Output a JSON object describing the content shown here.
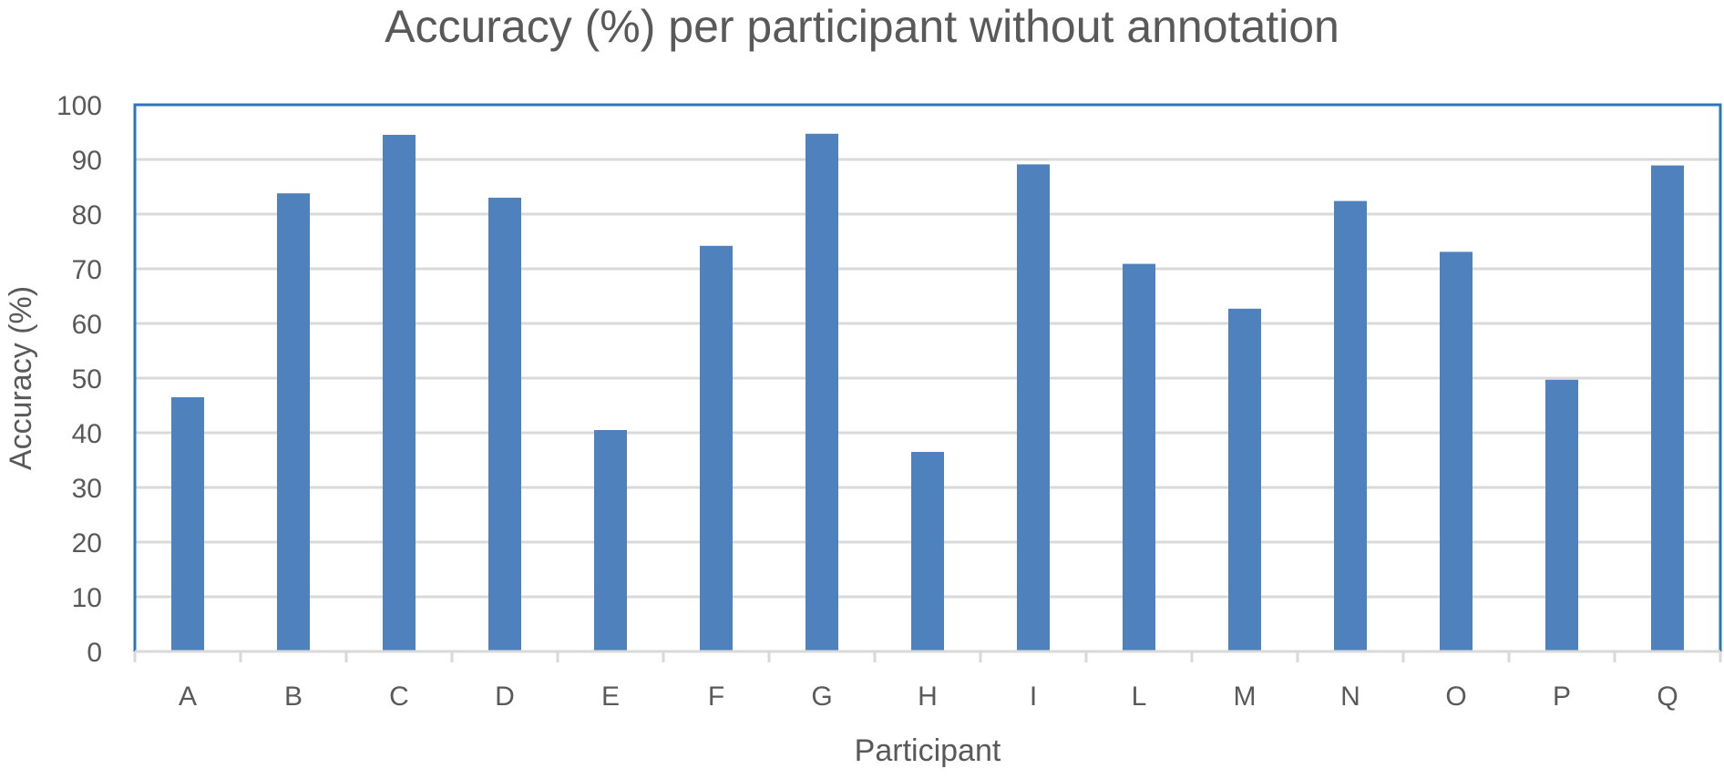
{
  "chart_data": {
    "type": "bar",
    "title": "Accuracy (%) per participant without annotation",
    "xlabel": "Participant",
    "ylabel": "Accuracy (%)",
    "categories": [
      "A",
      "B",
      "C",
      "D",
      "E",
      "F",
      "G",
      "H",
      "I",
      "L",
      "M",
      "N",
      "O",
      "P",
      "Q"
    ],
    "values": [
      46.5,
      83.8,
      94.5,
      83.0,
      40.5,
      74.2,
      94.7,
      36.5,
      89.1,
      70.9,
      62.7,
      82.4,
      73.1,
      49.7,
      88.9
    ],
    "ylim": [
      0,
      100
    ],
    "yticks": [
      0,
      10,
      20,
      30,
      40,
      50,
      60,
      70,
      80,
      90,
      100
    ],
    "grid": true,
    "legend": "none",
    "colors": {
      "bar": "#4F81BD",
      "frame": "#2E75B6",
      "grid": "#D9D9D9",
      "text": "#595959"
    }
  }
}
